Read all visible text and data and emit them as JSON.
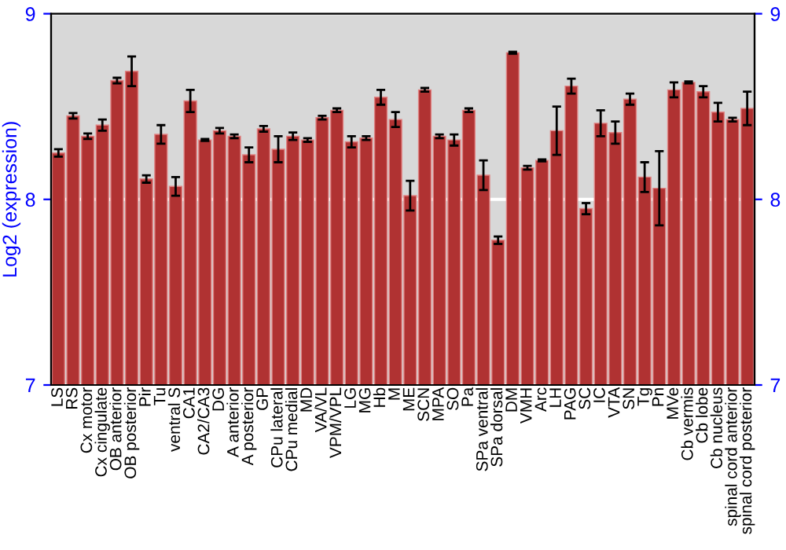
{
  "chart_data": {
    "type": "bar",
    "ylabel": "Log2 (expression)",
    "categories": [
      "LS",
      "RS",
      "Cx motor",
      "Cx cingulate",
      "OB anterior",
      "OB posterior",
      "Pir",
      "Tu",
      "ventral S",
      "CA1",
      "CA2/CA3",
      "DG",
      "A anterior",
      "A posterior",
      "GP",
      "CPu lateral",
      "CPu medial",
      "MD",
      "VA/VL",
      "VPM/VPL",
      "LG",
      "MG",
      "Hb",
      "M",
      "ME",
      "SCN",
      "MPA",
      "SO",
      "Pa",
      "SPa ventral",
      "SPa dorsal",
      "DM",
      "VMH",
      "Arc",
      "LH",
      "PAG",
      "SC",
      "IC",
      "VTA",
      "SN",
      "Tg",
      "Pn",
      "MVe",
      "Cb vermis",
      "Cb lobe",
      "Cb nucleus",
      "spinal cord anterior",
      "spinal cord posterior"
    ],
    "values": [
      8.25,
      8.45,
      8.34,
      8.4,
      8.64,
      8.69,
      8.11,
      8.35,
      8.07,
      8.53,
      8.32,
      8.37,
      8.34,
      8.24,
      8.38,
      8.27,
      8.34,
      8.32,
      8.44,
      8.48,
      8.31,
      8.33,
      8.55,
      8.43,
      8.02,
      8.59,
      8.34,
      8.32,
      8.48,
      8.13,
      7.78,
      8.79,
      8.17,
      8.21,
      8.37,
      8.61,
      7.95,
      8.41,
      8.36,
      8.54,
      8.12,
      8.06,
      8.59,
      8.63,
      8.58,
      8.47,
      8.43,
      8.49
    ],
    "errors": [
      0.02,
      0.015,
      0.015,
      0.03,
      0.015,
      0.08,
      0.02,
      0.05,
      0.05,
      0.06,
      0.005,
      0.015,
      0.01,
      0.04,
      0.015,
      0.07,
      0.02,
      0.01,
      0.01,
      0.01,
      0.03,
      0.01,
      0.04,
      0.04,
      0.08,
      0.01,
      0.01,
      0.03,
      0.01,
      0.08,
      0.02,
      0.005,
      0.01,
      0.005,
      0.13,
      0.04,
      0.03,
      0.07,
      0.06,
      0.03,
      0.08,
      0.2,
      0.04,
      0.005,
      0.03,
      0.05,
      0.01,
      0.09
    ],
    "color": "#b03232",
    "ylim": [
      7,
      9
    ],
    "yticks": [
      7,
      8,
      9
    ],
    "y2lim": [
      7,
      9
    ],
    "y2ticks": [
      7,
      8,
      9
    ],
    "grid": "y"
  }
}
